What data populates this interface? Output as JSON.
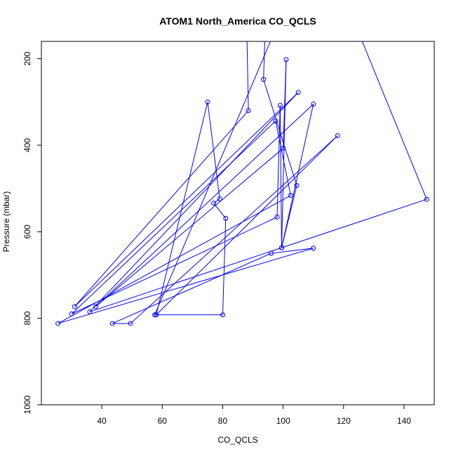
{
  "chart_data": {
    "type": "line",
    "title": "ATOM1 North_America CO_QCLS",
    "xlabel": "CO_QCLS",
    "ylabel": "Pressure (mbar)",
    "xlim": [
      20,
      150
    ],
    "ylim": [
      1000,
      160
    ],
    "y_reversed": true,
    "x_ticks": [
      40,
      60,
      80,
      100,
      120,
      140
    ],
    "y_ticks": [
      200,
      400,
      600,
      800,
      1000
    ],
    "grid": false,
    "legend": "none",
    "series": [
      {
        "color": "#0000ff",
        "marker": "open-circle",
        "points": [
          {
            "x": 88,
            "y": 140,
            "marker": false
          },
          {
            "x": 88.5,
            "y": 320
          },
          {
            "x": 31,
            "y": 773
          },
          {
            "x": 105,
            "y": 278
          },
          {
            "x": 36,
            "y": 785
          },
          {
            "x": 147.5,
            "y": 525
          },
          {
            "x": 125,
            "y": 140,
            "marker": false
          },
          {
            "x": 94,
            "y": 140,
            "marker": false
          },
          {
            "x": 93.5,
            "y": 248
          },
          {
            "x": 104.5,
            "y": 493
          },
          {
            "x": 99.5,
            "y": 637
          },
          {
            "x": 101,
            "y": 202
          },
          {
            "x": 100,
            "y": 407
          },
          {
            "x": 38,
            "y": 773
          },
          {
            "x": 110,
            "y": 305
          },
          {
            "x": 99.5,
            "y": 637
          },
          {
            "x": 99,
            "y": 308
          },
          {
            "x": 98,
            "y": 566
          },
          {
            "x": 30,
            "y": 790
          },
          {
            "x": 97.5,
            "y": 344
          },
          {
            "x": 102.5,
            "y": 516
          },
          {
            "x": 25.5,
            "y": 812
          },
          {
            "x": 110,
            "y": 638
          },
          {
            "x": 96,
            "y": 650
          },
          {
            "x": 43.5,
            "y": 812
          },
          {
            "x": 49.5,
            "y": 812
          },
          {
            "x": 118,
            "y": 378
          },
          {
            "x": 58,
            "y": 792
          },
          {
            "x": 75,
            "y": 300
          },
          {
            "x": 79,
            "y": 524
          },
          {
            "x": 77,
            "y": 534
          },
          {
            "x": 81,
            "y": 569
          },
          {
            "x": 80,
            "y": 792
          },
          {
            "x": 57.5,
            "y": 792
          },
          {
            "x": 97,
            "y": 140,
            "marker": false
          }
        ]
      }
    ]
  }
}
